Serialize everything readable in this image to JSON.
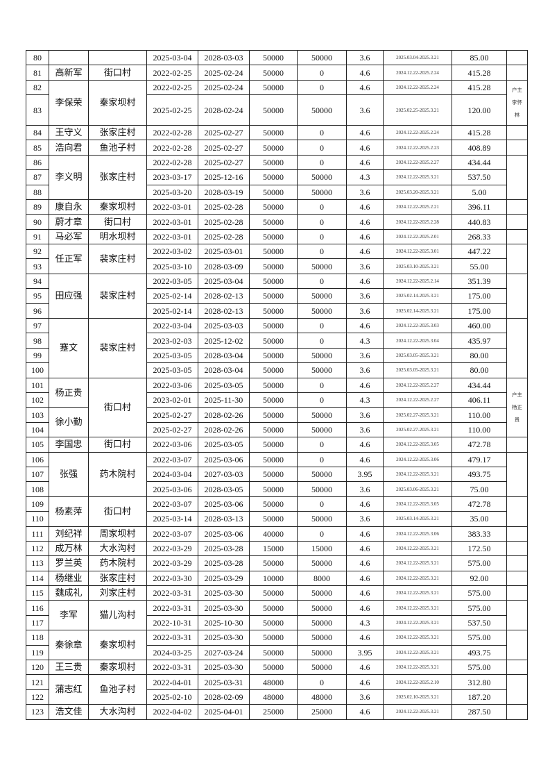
{
  "table": {
    "rows": [
      [
        "80",
        "2025-03-04",
        "2028-03-03",
        "50000",
        "50000",
        "3.6",
        "2025.03.04-2025.3.21",
        "85.00"
      ],
      [
        "81",
        "2022-02-25",
        "2025-02-24",
        "50000",
        "0",
        "4.6",
        "2024.12.22-2025.2.24",
        "415.28"
      ],
      [
        "82",
        "2022-02-25",
        "2025-02-24",
        "50000",
        "0",
        "4.6",
        "2024.12.22-2025.2.24",
        "415.28"
      ],
      [
        "83",
        "2025-02-25",
        "2028-02-24",
        "50000",
        "50000",
        "3.6",
        "2025.02.25-2025.3.21",
        "120.00"
      ],
      [
        "84",
        "2022-02-28",
        "2025-02-27",
        "50000",
        "0",
        "4.6",
        "2024.12.22-2025.2.24",
        "415.28"
      ],
      [
        "85",
        "2022-02-28",
        "2025-02-27",
        "50000",
        "0",
        "4.6",
        "2024.12.22-2025.2.23",
        "408.89"
      ],
      [
        "86",
        "2022-02-28",
        "2025-02-27",
        "50000",
        "0",
        "4.6",
        "2024.12.22-2025.2.27",
        "434.44"
      ],
      [
        "87",
        "2023-03-17",
        "2025-12-16",
        "50000",
        "50000",
        "4.3",
        "2024.12.22-2025.3.21",
        "537.50"
      ],
      [
        "88",
        "2025-03-20",
        "2028-03-19",
        "50000",
        "50000",
        "3.6",
        "2025.03.20-2025.3.21",
        "5.00"
      ],
      [
        "89",
        "2022-03-01",
        "2025-02-28",
        "50000",
        "0",
        "4.6",
        "2024.12.22-2025.2.21",
        "396.11"
      ],
      [
        "90",
        "2022-03-01",
        "2025-02-28",
        "50000",
        "0",
        "4.6",
        "2024.12.22-2025.2.28",
        "440.83"
      ],
      [
        "91",
        "2022-03-01",
        "2025-02-28",
        "50000",
        "0",
        "4.6",
        "2024.12.22-2025.2.01",
        "268.33"
      ],
      [
        "92",
        "2022-03-02",
        "2025-03-01",
        "50000",
        "0",
        "4.6",
        "2024.12.22-2025.3.01",
        "447.22"
      ],
      [
        "93",
        "2025-03-10",
        "2028-03-09",
        "50000",
        "50000",
        "3.6",
        "2025.03.10-2025.3.21",
        "55.00"
      ],
      [
        "94",
        "2022-03-05",
        "2025-03-04",
        "50000",
        "0",
        "4.6",
        "2024.12.22-2025.2.14",
        "351.39"
      ],
      [
        "95",
        "2025-02-14",
        "2028-02-13",
        "50000",
        "50000",
        "3.6",
        "2025.02.14-2025.3.21",
        "175.00"
      ],
      [
        "96",
        "2025-02-14",
        "2028-02-13",
        "50000",
        "50000",
        "3.6",
        "2025.02.14-2025.3.21",
        "175.00"
      ],
      [
        "97",
        "2022-03-04",
        "2025-03-03",
        "50000",
        "0",
        "4.6",
        "2024.12.22-2025.3.03",
        "460.00"
      ],
      [
        "98",
        "2023-02-03",
        "2025-12-02",
        "50000",
        "0",
        "4.3",
        "2024.12.22-2025.3.04",
        "435.97"
      ],
      [
        "99",
        "2025-03-05",
        "2028-03-04",
        "50000",
        "50000",
        "3.6",
        "2025.03.05-2025.3.21",
        "80.00"
      ],
      [
        "100",
        "2025-03-05",
        "2028-03-04",
        "50000",
        "50000",
        "3.6",
        "2025.03.05-2025.3.21",
        "80.00"
      ],
      [
        "101",
        "2022-03-06",
        "2025-03-05",
        "50000",
        "0",
        "4.6",
        "2024.12.22-2025.2.27",
        "434.44"
      ],
      [
        "102",
        "2023-02-01",
        "2025-11-30",
        "50000",
        "0",
        "4.3",
        "2024.12.22-2025.2.27",
        "406.11"
      ],
      [
        "103",
        "2025-02-27",
        "2028-02-26",
        "50000",
        "50000",
        "3.6",
        "2025.02.27-2025.3.21",
        "110.00"
      ],
      [
        "104",
        "2025-02-27",
        "2028-02-26",
        "50000",
        "50000",
        "3.6",
        "2025.02.27-2025.3.21",
        "110.00"
      ],
      [
        "105",
        "2022-03-06",
        "2025-03-05",
        "50000",
        "0",
        "4.6",
        "2024.12.22-2025.3.05",
        "472.78"
      ],
      [
        "106",
        "2022-03-07",
        "2025-03-06",
        "50000",
        "0",
        "4.6",
        "2024.12.22-2025.3.06",
        "479.17"
      ],
      [
        "107",
        "2024-03-04",
        "2027-03-03",
        "50000",
        "50000",
        "3.95",
        "2024.12.22-2025.3.21",
        "493.75"
      ],
      [
        "108",
        "2025-03-06",
        "2028-03-05",
        "50000",
        "50000",
        "3.6",
        "2025.03.06-2025.3.21",
        "75.00"
      ],
      [
        "109",
        "2022-03-07",
        "2025-03-06",
        "50000",
        "0",
        "4.6",
        "2024.12.22-2025.3.05",
        "472.78"
      ],
      [
        "110",
        "2025-03-14",
        "2028-03-13",
        "50000",
        "50000",
        "3.6",
        "2025.03.14-2025.3.21",
        "35.00"
      ],
      [
        "111",
        "2022-03-07",
        "2025-03-06",
        "40000",
        "0",
        "4.6",
        "2024.12.22-2025.3.06",
        "383.33"
      ],
      [
        "112",
        "2022-03-29",
        "2025-03-28",
        "15000",
        "15000",
        "4.6",
        "2024.12.22-2025.3.21",
        "172.50"
      ],
      [
        "113",
        "2022-03-29",
        "2025-03-28",
        "50000",
        "50000",
        "4.6",
        "2024.12.22-2025.3.21",
        "575.00"
      ],
      [
        "114",
        "2022-03-30",
        "2025-03-29",
        "10000",
        "8000",
        "4.6",
        "2024.12.22-2025.3.21",
        "92.00"
      ],
      [
        "115",
        "2022-03-31",
        "2025-03-30",
        "50000",
        "50000",
        "4.6",
        "2024.12.22-2025.3.21",
        "575.00"
      ],
      [
        "116",
        "2022-03-31",
        "2025-03-30",
        "50000",
        "50000",
        "4.6",
        "2024.12.22-2025.3.21",
        "575.00"
      ],
      [
        "117",
        "2022-10-31",
        "2025-10-30",
        "50000",
        "50000",
        "4.3",
        "2024.12.22-2025.3.21",
        "537.50"
      ],
      [
        "118",
        "2022-03-31",
        "2025-03-30",
        "50000",
        "50000",
        "4.6",
        "2024.12.22-2025.3.21",
        "575.00"
      ],
      [
        "119",
        "2024-03-25",
        "2027-03-24",
        "50000",
        "50000",
        "3.95",
        "2024.12.22-2025.3.21",
        "493.75"
      ],
      [
        "120",
        "2022-03-31",
        "2025-03-30",
        "50000",
        "50000",
        "4.6",
        "2024.12.22-2025.3.21",
        "575.00"
      ],
      [
        "121",
        "2022-04-01",
        "2025-03-31",
        "48000",
        "0",
        "4.6",
        "2024.12.22-2025.2.10",
        "312.80"
      ],
      [
        "122",
        "2025-02-10",
        "2028-02-09",
        "48000",
        "48000",
        "3.6",
        "2025.02.10-2025.3.21",
        "187.20"
      ],
      [
        "123",
        "2022-04-02",
        "2025-04-01",
        "25000",
        "25000",
        "4.6",
        "2024.12.22-2025.3.21",
        "287.50"
      ]
    ],
    "name_groups": [
      {
        "text": "",
        "span": 1
      },
      {
        "text": "高新军",
        "span": 1
      },
      {
        "text": "李保荣",
        "span": 2
      },
      {
        "text": "王守义",
        "span": 1
      },
      {
        "text": "浩向君",
        "span": 1
      },
      {
        "text": "李义明",
        "span": 3
      },
      {
        "text": "康自永",
        "span": 1
      },
      {
        "text": "蔚才章",
        "span": 1
      },
      {
        "text": "马必军",
        "span": 1
      },
      {
        "text": "任正军",
        "span": 2
      },
      {
        "text": "田应强",
        "span": 3
      },
      {
        "text": "蹇文",
        "span": 4
      },
      {
        "text": "杨正贵",
        "span": 2
      },
      {
        "text": "徐小勤",
        "span": 2
      },
      {
        "text": "李国忠",
        "span": 1
      },
      {
        "text": "张强",
        "span": 3
      },
      {
        "text": "杨素萍",
        "span": 2
      },
      {
        "text": "刘纪祥",
        "span": 1
      },
      {
        "text": "成万林",
        "span": 1
      },
      {
        "text": "罗兰英",
        "span": 1
      },
      {
        "text": "杨继业",
        "span": 1
      },
      {
        "text": "魏成礼",
        "span": 1
      },
      {
        "text": "李军",
        "span": 2
      },
      {
        "text": "秦徐章",
        "span": 2
      },
      {
        "text": "王三贵",
        "span": 1
      },
      {
        "text": "蒲志红",
        "span": 2
      },
      {
        "text": "浩文佳",
        "span": 1
      }
    ],
    "village_groups": [
      {
        "text": "",
        "span": 1
      },
      {
        "text": "街口村",
        "span": 1
      },
      {
        "text": "秦家坝村",
        "span": 2
      },
      {
        "text": "张家庄村",
        "span": 1
      },
      {
        "text": "鱼池子村",
        "span": 1
      },
      {
        "text": "张家庄村",
        "span": 3
      },
      {
        "text": "秦家坝村",
        "span": 1
      },
      {
        "text": "街口村",
        "span": 1
      },
      {
        "text": "明水坝村",
        "span": 1
      },
      {
        "text": "裴家庄村",
        "span": 2
      },
      {
        "text": "裴家庄村",
        "span": 3
      },
      {
        "text": "裴家庄村",
        "span": 4
      },
      {
        "text": "街口村",
        "span": 4
      },
      {
        "text": "街口村",
        "span": 1
      },
      {
        "text": "药木院村",
        "span": 3
      },
      {
        "text": "街口村",
        "span": 2
      },
      {
        "text": "周家坝村",
        "span": 1
      },
      {
        "text": "大水沟村",
        "span": 1
      },
      {
        "text": "药木院村",
        "span": 1
      },
      {
        "text": "张家庄村",
        "span": 1
      },
      {
        "text": "刘家庄村",
        "span": 1
      },
      {
        "text": "猫儿沟村",
        "span": 2
      },
      {
        "text": "秦家坝村",
        "span": 2
      },
      {
        "text": "秦家坝村",
        "span": 1
      },
      {
        "text": "鱼池子村",
        "span": 2
      },
      {
        "text": "大水沟村",
        "span": 1
      }
    ],
    "note_groups": [
      {
        "text": "",
        "span": 1
      },
      {
        "text": "",
        "span": 1
      },
      {
        "text": "户主李怀林",
        "span": 2
      },
      {
        "text": "",
        "span": 1
      },
      {
        "text": "",
        "span": 1
      },
      {
        "text": "",
        "span": 3
      },
      {
        "text": "",
        "span": 1
      },
      {
        "text": "",
        "span": 1
      },
      {
        "text": "",
        "span": 1
      },
      {
        "text": "",
        "span": 2
      },
      {
        "text": "",
        "span": 3
      },
      {
        "text": "",
        "span": 4
      },
      {
        "text": "户主杨正贵",
        "span": 4
      },
      {
        "text": "",
        "span": 1
      },
      {
        "text": "",
        "span": 3
      },
      {
        "text": "",
        "span": 2
      },
      {
        "text": "",
        "span": 1
      },
      {
        "text": "",
        "span": 1
      },
      {
        "text": "",
        "span": 1
      },
      {
        "text": "",
        "span": 1
      },
      {
        "text": "",
        "span": 1
      },
      {
        "text": "",
        "span": 2
      },
      {
        "text": "",
        "span": 2
      },
      {
        "text": "",
        "span": 1
      },
      {
        "text": "",
        "span": 2
      },
      {
        "text": "",
        "span": 1
      }
    ]
  }
}
